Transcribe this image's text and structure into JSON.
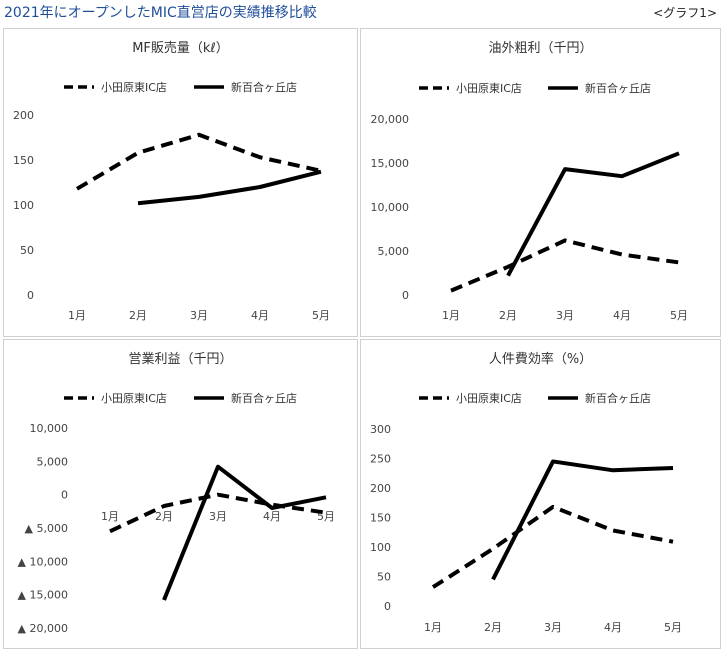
{
  "header": {
    "title": "2021年にオープンしたMIC直営店の実績推移比較",
    "graph_label": "<グラフ1>"
  },
  "chart_data": [
    {
      "type": "line",
      "title": "MF販売量（kℓ）",
      "categories": [
        "1月",
        "2月",
        "3月",
        "4月",
        "5月"
      ],
      "y_ticks": [
        0,
        50,
        100,
        150,
        200
      ],
      "y_tick_labels": [
        "0",
        "50",
        "100",
        "150",
        "200"
      ],
      "ylim": [
        0,
        200
      ],
      "grid": false,
      "legend": "top",
      "series": [
        {
          "name": "小田原東IC店",
          "style": "dashed",
          "values": [
            118,
            158,
            178,
            153,
            138
          ]
        },
        {
          "name": "新百合ヶ丘店",
          "style": "solid",
          "values": [
            null,
            102,
            109,
            120,
            137
          ]
        }
      ]
    },
    {
      "type": "line",
      "title": "油外粗利（千円）",
      "categories": [
        "1月",
        "2月",
        "3月",
        "4月",
        "5月"
      ],
      "y_ticks": [
        0,
        5000,
        10000,
        15000,
        20000
      ],
      "y_tick_labels": [
        "0",
        "5,000",
        "10,000",
        "15,000",
        "20,000"
      ],
      "ylim": [
        0,
        20000
      ],
      "grid": false,
      "legend": "top",
      "series": [
        {
          "name": "小田原東IC店",
          "style": "dashed",
          "values": [
            500,
            3200,
            6200,
            4600,
            3700
          ]
        },
        {
          "name": "新百合ヶ丘店",
          "style": "solid",
          "values": [
            null,
            2200,
            14300,
            13500,
            16100
          ]
        }
      ]
    },
    {
      "type": "line",
      "title": "営業利益（千円）",
      "categories": [
        "1月",
        "2月",
        "3月",
        "4月",
        "5月"
      ],
      "y_ticks": [
        10000,
        5000,
        0,
        -5000,
        -10000,
        -15000,
        -20000
      ],
      "y_tick_labels": [
        "10,000",
        "5,000",
        "0",
        "▲ 5,000",
        "▲ 10,000",
        "▲ 15,000",
        "▲ 20,000"
      ],
      "ylim": [
        -20000,
        10000
      ],
      "grid": false,
      "legend": "top",
      "series": [
        {
          "name": "小田原東IC店",
          "style": "dashed",
          "values": [
            -5500,
            -1700,
            0,
            -1500,
            -2700
          ]
        },
        {
          "name": "新百合ヶ丘店",
          "style": "solid",
          "values": [
            null,
            -15800,
            4200,
            -2000,
            -400
          ]
        }
      ]
    },
    {
      "type": "line",
      "title": "人件費効率（%）",
      "categories": [
        "1月",
        "2月",
        "3月",
        "4月",
        "5月"
      ],
      "y_ticks": [
        0,
        50,
        100,
        150,
        200,
        250,
        300
      ],
      "y_tick_labels": [
        "0",
        "50",
        "100",
        "150",
        "200",
        "250",
        "300"
      ],
      "ylim": [
        0,
        300
      ],
      "grid": false,
      "legend": "top",
      "series": [
        {
          "name": "小田原東IC店",
          "style": "dashed",
          "values": [
            32,
            97,
            168,
            128,
            109
          ]
        },
        {
          "name": "新百合ヶ丘店",
          "style": "solid",
          "values": [
            null,
            45,
            245,
            230,
            234
          ]
        }
      ]
    }
  ]
}
